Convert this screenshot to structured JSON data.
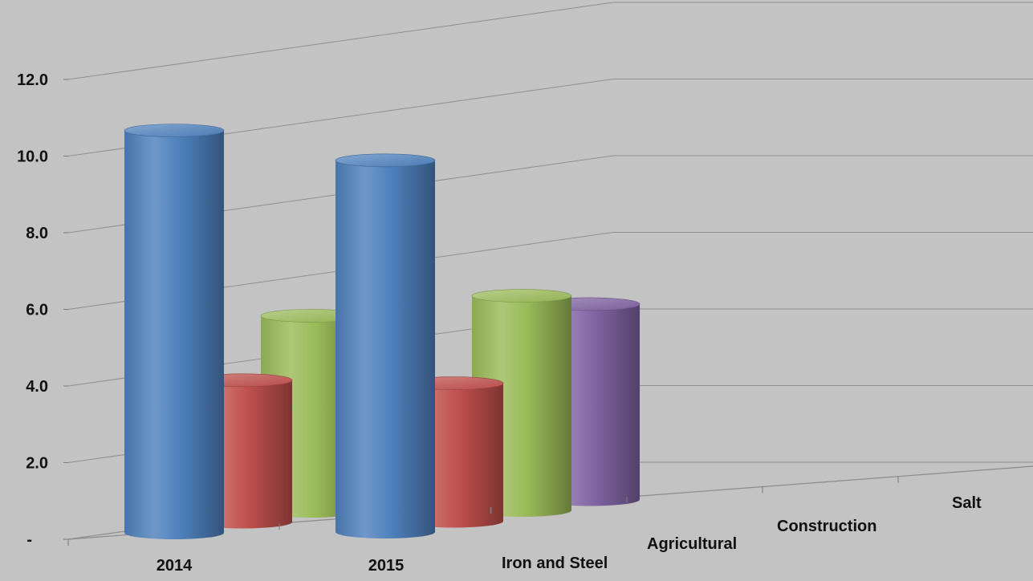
{
  "chart_data": {
    "type": "bar",
    "variant": "3d-cylinder",
    "title": "",
    "xlabel": "",
    "ylabel": "",
    "ylim": [
      0,
      12
    ],
    "y_ticks": [
      "-",
      "2.0",
      "4.0",
      "6.0",
      "8.0",
      "10.0",
      "12.0"
    ],
    "categories": [
      "2014",
      "2015"
    ],
    "series": [
      {
        "name": "Iron and Steel",
        "values": [
          10.5,
          9.7
        ],
        "color": "#4f81bd"
      },
      {
        "name": "Agricultural",
        "values": [
          3.7,
          3.6
        ],
        "color": "#c0504d"
      },
      {
        "name": "Construction",
        "values": [
          5.1,
          5.6
        ],
        "color": "#9bbb59"
      },
      {
        "name": "Salt",
        "values": [
          4.8,
          5.1
        ],
        "color": "#8064a2"
      }
    ],
    "grid": true,
    "legend": "none",
    "background": "#c3c3c3"
  }
}
